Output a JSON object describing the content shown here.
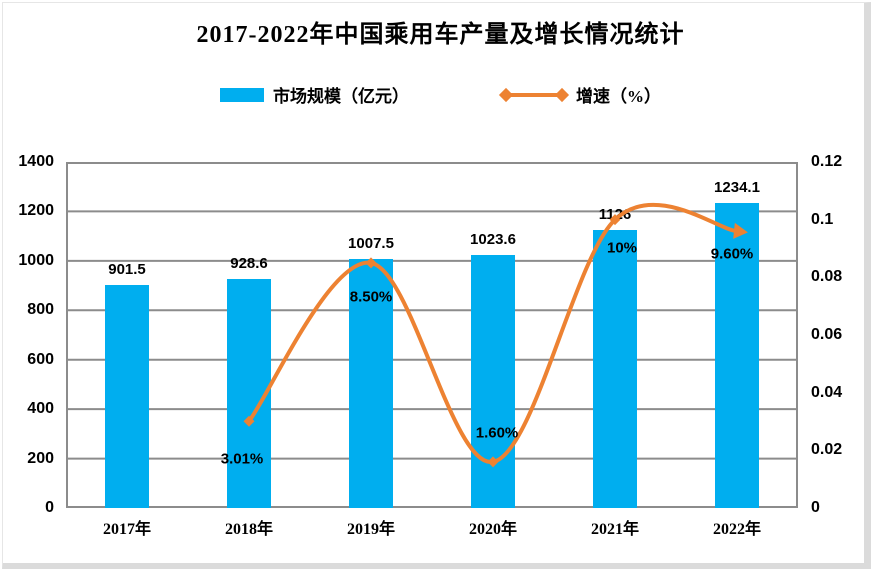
{
  "title": "2017-2022年中国乘用车产量及增长情况统计",
  "legend": {
    "bars_label": "市场规模（亿元）",
    "line_label": "增速（%）"
  },
  "colors": {
    "bar": "#00AEEF",
    "line": "#ED8232",
    "grid": "#8C8C8C",
    "text": "#000000",
    "frame_shadow": "#DBDBDB",
    "frame_light": "#E6E6E6"
  },
  "chart_data": {
    "type": "combo",
    "title": "2017-2022年中国乘用车产量及增长情况统计",
    "categories": [
      "2017年",
      "2018年",
      "2019年",
      "2020年",
      "2021年",
      "2022年"
    ],
    "series": [
      {
        "name": "市场规模（亿元）",
        "type": "bar",
        "axis": "left",
        "values": [
          901.5,
          928.6,
          1007.5,
          1023.6,
          1126,
          1234.1
        ],
        "labels": [
          "901.5",
          "928.6",
          "1007.5",
          "1023.6",
          "1126",
          "1234.1"
        ]
      },
      {
        "name": "增速（%）",
        "type": "line",
        "axis": "right",
        "start_category_index": 1,
        "values": [
          0.0301,
          0.085,
          0.016,
          0.1,
          0.096
        ],
        "labels": [
          "3.01%",
          "8.50%",
          "1.60%",
          "10%",
          "9.60%"
        ]
      }
    ],
    "left_axis": {
      "min": 0,
      "max": 1400,
      "tick_step": 200,
      "ticks": [
        "0",
        "200",
        "400",
        "600",
        "800",
        "1000",
        "1200",
        "1400"
      ]
    },
    "right_axis": {
      "min": 0,
      "max": 0.12,
      "tick_step": 0.02,
      "ticks": [
        "0",
        "0.02",
        "0.04",
        "0.06",
        "0.08",
        "0.1",
        "0.12"
      ]
    },
    "grid": true,
    "legend_position": "top",
    "line_end_arrow": true,
    "line_smooth": true
  }
}
